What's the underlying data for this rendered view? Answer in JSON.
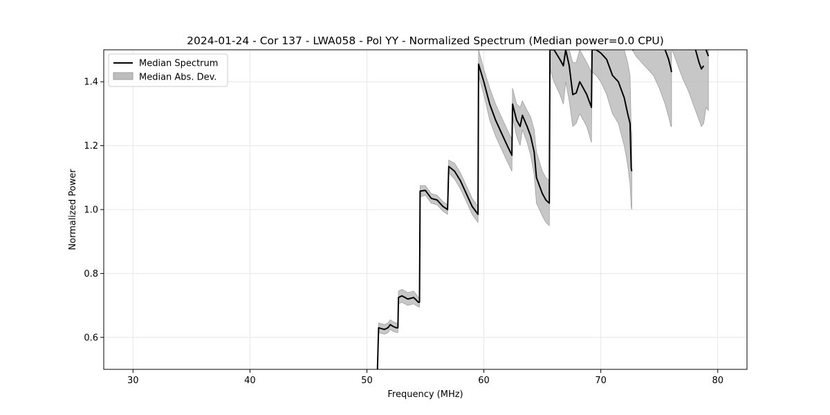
{
  "chart_data": {
    "type": "line",
    "title": "2024-01-24 - Cor 137 - LWA058 - Pol YY - Normalized Spectrum (Median power=0.0 CPU)",
    "xlabel": "Frequency (MHz)",
    "ylabel": "Normalized Power",
    "xlim": [
      27.5,
      82.5
    ],
    "ylim": [
      0.5,
      1.5
    ],
    "xticks": [
      30,
      40,
      50,
      60,
      70,
      80
    ],
    "yticks": [
      0.6,
      0.8,
      1.0,
      1.2,
      1.4
    ],
    "xtick_labels": [
      "30",
      "40",
      "50",
      "60",
      "70",
      "80"
    ],
    "ytick_labels": [
      "0.6",
      "0.8",
      "1.0",
      "1.2",
      "1.4"
    ],
    "grid": true,
    "legend_position": "top-left",
    "legend": [
      "Median Spectrum",
      "Median Abs. Dev."
    ],
    "colors": {
      "line": "#000000",
      "band": "#bdbdbd",
      "band_edge": "#9e9e9e",
      "grid": "#e6e6e6"
    },
    "series": [
      {
        "name": "Median Spectrum",
        "kind": "line",
        "x": [
          50.9,
          51.0,
          51.5,
          51.8,
          52.0,
          52.2,
          52.5,
          52.65,
          52.7,
          53.0,
          53.5,
          54.0,
          54.4,
          54.5,
          54.55,
          55.0,
          55.5,
          56.0,
          56.5,
          56.9,
          57.0,
          57.5,
          58.0,
          58.5,
          59.0,
          59.5,
          59.55,
          60.0,
          60.5,
          61.0,
          61.5,
          62.0,
          62.4,
          62.45,
          62.8,
          63.1,
          63.3,
          63.7,
          64.0,
          64.3,
          64.5,
          65.0,
          65.3,
          65.6,
          65.65,
          66.0,
          66.5,
          66.8,
          67.0,
          67.3,
          67.6,
          67.9,
          68.2,
          68.5,
          68.8,
          69.2,
          69.25,
          69.6,
          70.0,
          70.5,
          71.0,
          71.5,
          72.0,
          72.3,
          72.5,
          72.6,
          72.65
        ],
        "y": [
          0.5,
          0.63,
          0.625,
          0.63,
          0.64,
          0.635,
          0.63,
          0.63,
          0.725,
          0.73,
          0.72,
          0.725,
          0.71,
          0.71,
          1.058,
          1.06,
          1.035,
          1.03,
          1.01,
          1.0,
          1.135,
          1.12,
          1.09,
          1.05,
          1.01,
          0.985,
          1.455,
          1.4,
          1.33,
          1.28,
          1.24,
          1.2,
          1.17,
          1.33,
          1.28,
          1.26,
          1.295,
          1.26,
          1.23,
          1.18,
          1.1,
          1.05,
          1.03,
          1.02,
          1.5,
          1.5,
          1.47,
          1.45,
          1.5,
          1.45,
          1.36,
          1.365,
          1.4,
          1.38,
          1.36,
          1.32,
          1.5,
          1.5,
          1.49,
          1.47,
          1.42,
          1.4,
          1.35,
          1.3,
          1.27,
          1.13,
          1.12
        ]
      },
      {
        "name": "Median Spectrum",
        "kind": "line",
        "x": [
          72.7,
          72.8
        ],
        "y": [
          1.5,
          1.5
        ]
      },
      {
        "name": "Median Spectrum",
        "kind": "line",
        "x": [
          75.5,
          75.8,
          76.0,
          76.05
        ],
        "y": [
          1.5,
          1.47,
          1.44,
          1.43
        ]
      },
      {
        "name": "Median Spectrum",
        "kind": "line",
        "x": [
          78.1,
          78.4,
          78.6,
          78.8
        ],
        "y": [
          1.5,
          1.46,
          1.44,
          1.45
        ]
      },
      {
        "name": "Median Spectrum",
        "kind": "line",
        "x": [
          79.0,
          79.2
        ],
        "y": [
          1.5,
          1.48
        ]
      },
      {
        "name": "Median Abs. Dev.",
        "kind": "band",
        "x": [
          50.9,
          51.0,
          51.5,
          51.8,
          52.0,
          52.2,
          52.5,
          52.65,
          52.7,
          53.0,
          53.5,
          54.0,
          54.4,
          54.5,
          54.55,
          55.0,
          55.5,
          56.0,
          56.5,
          56.9,
          57.0,
          57.5,
          58.0,
          58.5,
          59.0,
          59.5,
          59.55,
          60.0,
          60.5,
          61.0,
          61.5,
          62.0,
          62.4,
          62.45,
          62.8,
          63.1,
          63.3,
          63.7,
          64.0,
          64.3,
          64.5,
          65.0,
          65.3,
          65.6,
          65.65,
          66.0,
          66.5,
          66.8,
          67.0,
          67.3,
          67.6,
          67.9,
          68.2,
          68.5,
          68.8,
          69.2,
          69.25,
          69.6,
          70.0,
          70.5,
          71.0,
          71.5,
          72.0,
          72.3,
          72.5,
          72.6,
          72.65
        ],
        "lower": [
          0.5,
          0.615,
          0.61,
          0.615,
          0.625,
          0.62,
          0.615,
          0.615,
          0.705,
          0.71,
          0.7,
          0.705,
          0.695,
          0.695,
          1.04,
          1.045,
          1.02,
          1.015,
          0.995,
          0.985,
          1.115,
          1.095,
          1.065,
          1.025,
          0.985,
          0.96,
          1.42,
          1.36,
          1.28,
          1.23,
          1.19,
          1.15,
          1.12,
          1.29,
          1.23,
          1.2,
          1.25,
          1.21,
          1.17,
          1.11,
          1.02,
          0.98,
          0.96,
          0.95,
          1.44,
          1.4,
          1.36,
          1.33,
          1.4,
          1.34,
          1.26,
          1.27,
          1.3,
          1.28,
          1.26,
          1.21,
          1.43,
          1.42,
          1.4,
          1.36,
          1.3,
          1.27,
          1.2,
          1.14,
          1.08,
          1.01,
          1.0
        ],
        "upper": [
          0.5,
          0.645,
          0.64,
          0.645,
          0.655,
          0.65,
          0.645,
          0.645,
          0.745,
          0.75,
          0.74,
          0.745,
          0.725,
          0.725,
          1.075,
          1.075,
          1.05,
          1.045,
          1.025,
          1.015,
          1.155,
          1.145,
          1.115,
          1.075,
          1.035,
          1.01,
          1.5,
          1.44,
          1.38,
          1.33,
          1.29,
          1.25,
          1.22,
          1.38,
          1.33,
          1.32,
          1.34,
          1.31,
          1.29,
          1.25,
          1.18,
          1.12,
          1.1,
          1.09,
          1.5,
          1.5,
          1.5,
          1.5,
          1.5,
          1.5,
          1.46,
          1.46,
          1.5,
          1.48,
          1.46,
          1.43,
          1.5,
          1.5,
          1.5,
          1.5,
          1.5,
          1.5,
          1.5,
          1.46,
          1.42,
          1.25,
          1.24
        ]
      },
      {
        "name": "Median Abs. Dev.",
        "kind": "band",
        "x": [
          72.7,
          73.0,
          73.5,
          74.0,
          74.5,
          75.0,
          75.5,
          75.8,
          76.0,
          76.05
        ],
        "lower": [
          1.5,
          1.48,
          1.46,
          1.44,
          1.42,
          1.38,
          1.33,
          1.29,
          1.26,
          1.26
        ],
        "upper": [
          1.5,
          1.5,
          1.5,
          1.5,
          1.5,
          1.5,
          1.5,
          1.5,
          1.5,
          1.5
        ]
      },
      {
        "name": "Median Abs. Dev.",
        "kind": "band",
        "x": [
          76.1,
          76.5,
          77.0,
          77.5,
          78.0,
          78.4,
          78.6,
          78.8,
          79.0,
          79.2
        ],
        "lower": [
          1.5,
          1.46,
          1.41,
          1.37,
          1.32,
          1.28,
          1.26,
          1.27,
          1.32,
          1.31
        ],
        "upper": [
          1.5,
          1.5,
          1.5,
          1.5,
          1.5,
          1.5,
          1.5,
          1.5,
          1.5,
          1.5
        ]
      }
    ]
  }
}
